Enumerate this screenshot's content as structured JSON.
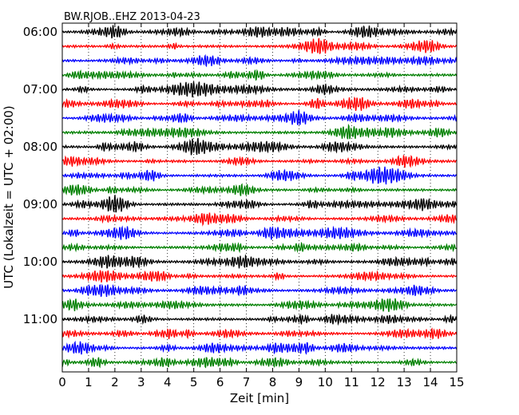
{
  "chart_data": {
    "type": "line",
    "title": "BW.RJOB..EHZ 2013-04-23",
    "xlabel": "Zeit  [min]",
    "ylabel": "UTC (Lokalzeit = UTC + 02:00)",
    "xlim": [
      0,
      15
    ],
    "xticks": [
      0,
      1,
      2,
      3,
      4,
      5,
      6,
      7,
      8,
      9,
      10,
      11,
      12,
      13,
      14,
      15
    ],
    "x_grid": "dotted",
    "y_grid": false,
    "start_time": "06:00",
    "trace_interval_minutes": 15,
    "trace_count": 24,
    "trace_colors": [
      "#000000",
      "#ff0000",
      "#0000ff",
      "#008000"
    ],
    "y_tick_labels": [
      "06:00",
      "07:00",
      "08:00",
      "09:00",
      "10:00",
      "11:00"
    ],
    "y_tick_trace_index": [
      0,
      4,
      8,
      12,
      16,
      20
    ]
  }
}
